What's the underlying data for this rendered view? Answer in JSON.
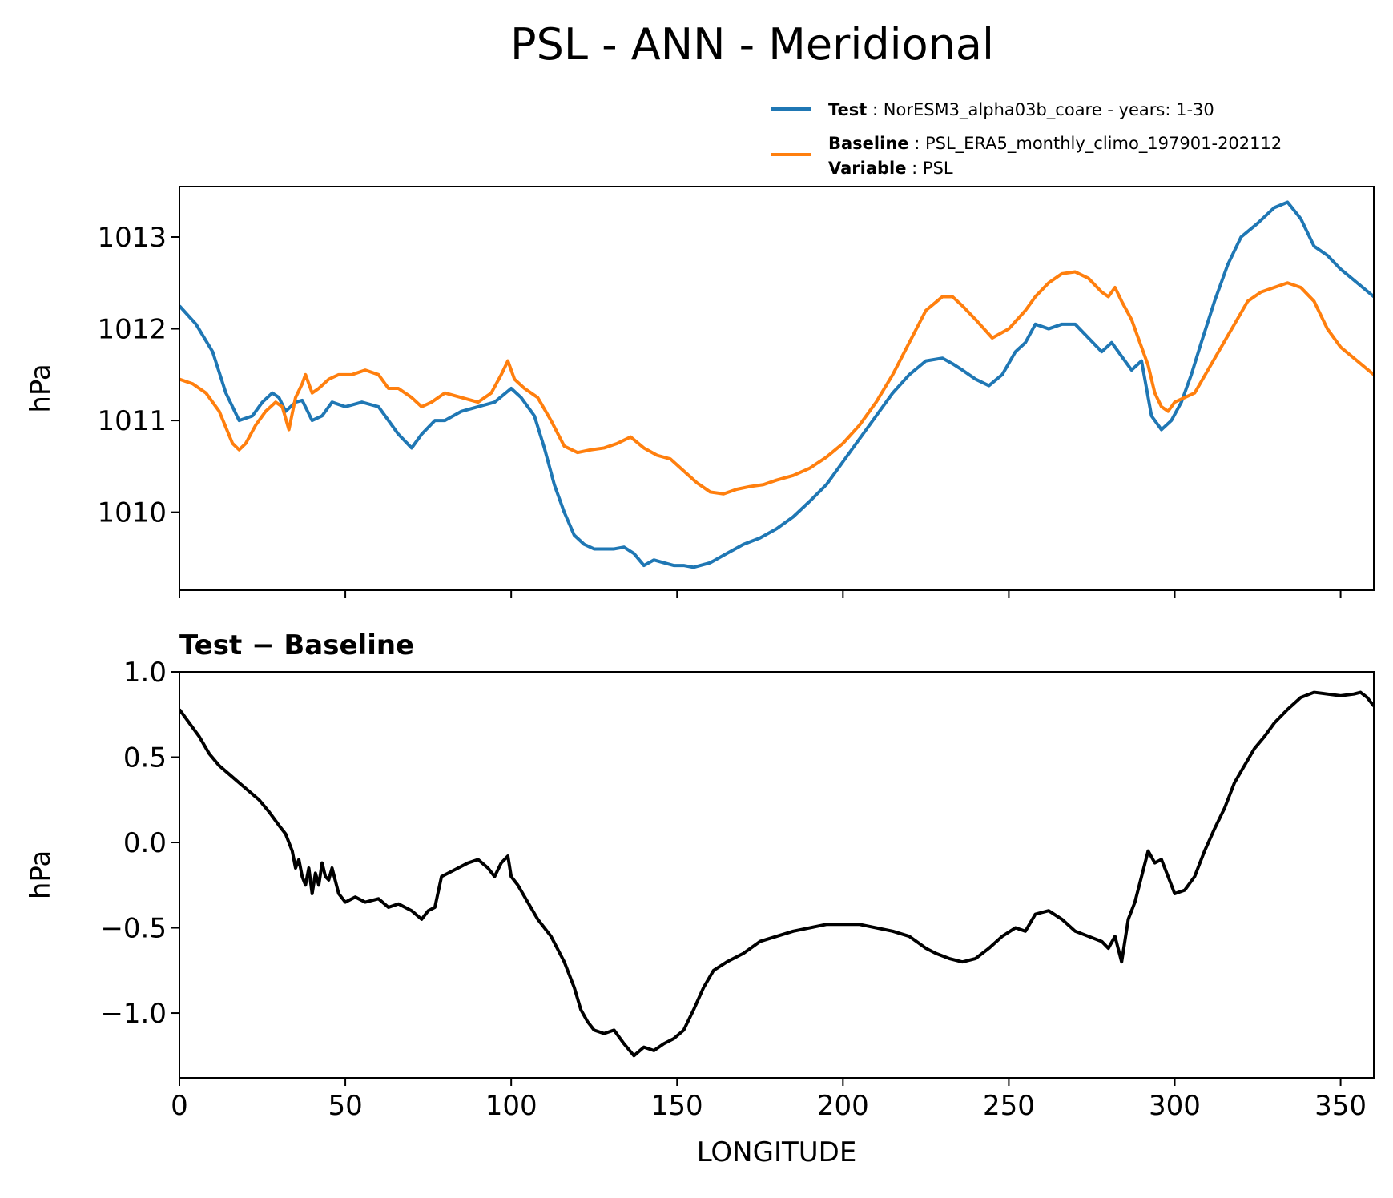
{
  "title": "PSL - ANN - Meridional",
  "legend": {
    "test_key": "Test",
    "test_value": "NorESM3_alpha03b_coare - years: 1-30",
    "baseline_key": "Baseline",
    "baseline_value": "PSL_ERA5_monthly_climo_197901-202112",
    "variable_key": "Variable",
    "variable_value": "PSL"
  },
  "colors": {
    "test": "#1f77b4",
    "baseline": "#ff7f0e",
    "diff": "#000000"
  },
  "chart_data": [
    {
      "type": "line",
      "title": "",
      "xlabel": "",
      "ylabel": "hPa",
      "xlim": [
        0,
        360
      ],
      "ylim": [
        1009.15,
        1013.55
      ],
      "yticks": [
        1010,
        1011,
        1012,
        1013
      ],
      "yticklabels": [
        "1010",
        "1011",
        "1012",
        "1013"
      ],
      "xticks": [
        0,
        50,
        100,
        150,
        200,
        250,
        300,
        350
      ],
      "show_xticklabels": false,
      "series": [
        {
          "name": "Test",
          "x": [
            0,
            5,
            10,
            14,
            18,
            22,
            25,
            28,
            30,
            32,
            35,
            37,
            40,
            43,
            46,
            50,
            55,
            60,
            63,
            66,
            70,
            73,
            77,
            80,
            85,
            90,
            95,
            100,
            103,
            107,
            110,
            113,
            116,
            119,
            122,
            125,
            128,
            131,
            134,
            137,
            140,
            143,
            146,
            149,
            152,
            155,
            160,
            165,
            170,
            175,
            180,
            185,
            190,
            195,
            200,
            205,
            210,
            215,
            220,
            225,
            230,
            233,
            236,
            240,
            244,
            248,
            252,
            255,
            258,
            262,
            266,
            270,
            274,
            278,
            281,
            284,
            287,
            290,
            293,
            296,
            299,
            302,
            305,
            308,
            312,
            316,
            320,
            325,
            330,
            334,
            338,
            342,
            346,
            350,
            355,
            360
          ],
          "values": [
            1012.25,
            1012.05,
            1011.75,
            1011.3,
            1011.0,
            1011.05,
            1011.2,
            1011.3,
            1011.25,
            1011.1,
            1011.2,
            1011.22,
            1011.0,
            1011.05,
            1011.2,
            1011.15,
            1011.2,
            1011.15,
            1011.0,
            1010.85,
            1010.7,
            1010.85,
            1011.0,
            1011.0,
            1011.1,
            1011.15,
            1011.2,
            1011.35,
            1011.25,
            1011.05,
            1010.7,
            1010.3,
            1010.0,
            1009.75,
            1009.65,
            1009.6,
            1009.6,
            1009.6,
            1009.62,
            1009.55,
            1009.42,
            1009.48,
            1009.45,
            1009.42,
            1009.42,
            1009.4,
            1009.45,
            1009.55,
            1009.65,
            1009.72,
            1009.82,
            1009.95,
            1010.12,
            1010.3,
            1010.55,
            1010.8,
            1011.05,
            1011.3,
            1011.5,
            1011.65,
            1011.68,
            1011.62,
            1011.55,
            1011.45,
            1011.38,
            1011.5,
            1011.75,
            1011.85,
            1012.05,
            1012.0,
            1012.05,
            1012.05,
            1011.9,
            1011.75,
            1011.85,
            1011.7,
            1011.55,
            1011.65,
            1011.05,
            1010.9,
            1011.0,
            1011.2,
            1011.5,
            1011.85,
            1012.3,
            1012.7,
            1013.0,
            1013.15,
            1013.32,
            1013.38,
            1013.2,
            1012.9,
            1012.8,
            1012.65,
            1012.5,
            1012.35
          ]
        },
        {
          "name": "Baseline",
          "x": [
            0,
            4,
            8,
            12,
            16,
            18,
            20,
            23,
            26,
            29,
            31,
            33,
            35,
            37,
            38,
            40,
            42,
            45,
            48,
            52,
            56,
            60,
            63,
            66,
            70,
            73,
            76,
            80,
            85,
            90,
            94,
            97,
            99,
            101,
            104,
            108,
            112,
            116,
            120,
            124,
            128,
            132,
            136,
            140,
            144,
            148,
            152,
            156,
            160,
            164,
            168,
            172,
            176,
            180,
            185,
            190,
            195,
            200,
            205,
            210,
            215,
            220,
            225,
            230,
            233,
            236,
            240,
            245,
            250,
            255,
            258,
            262,
            266,
            270,
            274,
            278,
            280,
            282,
            284,
            287,
            290,
            292,
            294,
            296,
            298,
            300,
            303,
            306,
            310,
            314,
            318,
            322,
            326,
            330,
            334,
            338,
            342,
            346,
            350,
            355,
            360
          ],
          "values": [
            1011.45,
            1011.4,
            1011.3,
            1011.1,
            1010.75,
            1010.68,
            1010.75,
            1010.95,
            1011.1,
            1011.2,
            1011.15,
            1010.9,
            1011.25,
            1011.4,
            1011.5,
            1011.3,
            1011.35,
            1011.45,
            1011.5,
            1011.5,
            1011.55,
            1011.5,
            1011.35,
            1011.35,
            1011.25,
            1011.15,
            1011.2,
            1011.3,
            1011.25,
            1011.2,
            1011.3,
            1011.5,
            1011.65,
            1011.45,
            1011.35,
            1011.25,
            1011.0,
            1010.72,
            1010.65,
            1010.68,
            1010.7,
            1010.75,
            1010.82,
            1010.7,
            1010.62,
            1010.58,
            1010.45,
            1010.32,
            1010.22,
            1010.2,
            1010.25,
            1010.28,
            1010.3,
            1010.35,
            1010.4,
            1010.48,
            1010.6,
            1010.75,
            1010.95,
            1011.2,
            1011.5,
            1011.85,
            1012.2,
            1012.35,
            1012.35,
            1012.25,
            1012.1,
            1011.9,
            1012.0,
            1012.2,
            1012.35,
            1012.5,
            1012.6,
            1012.62,
            1012.55,
            1012.4,
            1012.35,
            1012.45,
            1012.3,
            1012.1,
            1011.8,
            1011.6,
            1011.3,
            1011.15,
            1011.1,
            1011.2,
            1011.25,
            1011.3,
            1011.55,
            1011.8,
            1012.05,
            1012.3,
            1012.4,
            1012.45,
            1012.5,
            1012.45,
            1012.3,
            1012.0,
            1011.8,
            1011.65,
            1011.5
          ]
        }
      ]
    },
    {
      "type": "line",
      "title": "Test − Baseline",
      "xlabel": "LONGITUDE",
      "ylabel": "hPa",
      "xlim": [
        0,
        360
      ],
      "ylim": [
        -1.38,
        1.0
      ],
      "yticks": [
        -1.0,
        -0.5,
        0.0,
        0.5,
        1.0
      ],
      "yticklabels": [
        "−1.0",
        "−0.5",
        "0.0",
        "0.5",
        "1.0"
      ],
      "xticks": [
        0,
        50,
        100,
        150,
        200,
        250,
        300,
        350
      ],
      "xticklabels": [
        "0",
        "50",
        "100",
        "150",
        "200",
        "250",
        "300",
        "350"
      ],
      "series": [
        {
          "name": "Test - Baseline",
          "x": [
            0,
            3,
            6,
            9,
            12,
            15,
            18,
            21,
            24,
            27,
            30,
            32,
            34,
            35,
            36,
            37,
            38,
            39,
            40,
            41,
            42,
            43,
            44,
            45,
            46,
            48,
            50,
            53,
            56,
            60,
            63,
            66,
            70,
            73,
            75,
            77,
            79,
            81,
            84,
            87,
            90,
            93,
            95,
            97,
            99,
            100,
            102,
            105,
            108,
            112,
            116,
            119,
            121,
            123,
            125,
            128,
            131,
            134,
            137,
            140,
            143,
            146,
            149,
            152,
            155,
            158,
            161,
            165,
            170,
            175,
            180,
            185,
            190,
            195,
            200,
            205,
            210,
            215,
            220,
            225,
            228,
            232,
            236,
            240,
            244,
            248,
            252,
            255,
            258,
            262,
            266,
            270,
            274,
            278,
            280,
            282,
            284,
            286,
            288,
            290,
            292,
            294,
            296,
            298,
            300,
            303,
            306,
            309,
            312,
            315,
            318,
            321,
            324,
            327,
            330,
            334,
            338,
            342,
            346,
            350,
            354,
            356,
            358,
            360
          ],
          "values": [
            0.78,
            0.7,
            0.62,
            0.52,
            0.45,
            0.4,
            0.35,
            0.3,
            0.25,
            0.18,
            0.1,
            0.05,
            -0.05,
            -0.15,
            -0.1,
            -0.2,
            -0.25,
            -0.15,
            -0.3,
            -0.18,
            -0.25,
            -0.12,
            -0.2,
            -0.22,
            -0.15,
            -0.3,
            -0.35,
            -0.32,
            -0.35,
            -0.33,
            -0.38,
            -0.36,
            -0.4,
            -0.45,
            -0.4,
            -0.38,
            -0.2,
            -0.18,
            -0.15,
            -0.12,
            -0.1,
            -0.15,
            -0.2,
            -0.12,
            -0.08,
            -0.2,
            -0.25,
            -0.35,
            -0.45,
            -0.55,
            -0.7,
            -0.85,
            -0.98,
            -1.05,
            -1.1,
            -1.12,
            -1.1,
            -1.18,
            -1.25,
            -1.2,
            -1.22,
            -1.18,
            -1.15,
            -1.1,
            -0.98,
            -0.85,
            -0.75,
            -0.7,
            -0.65,
            -0.58,
            -0.55,
            -0.52,
            -0.5,
            -0.48,
            -0.48,
            -0.48,
            -0.5,
            -0.52,
            -0.55,
            -0.62,
            -0.65,
            -0.68,
            -0.7,
            -0.68,
            -0.62,
            -0.55,
            -0.5,
            -0.52,
            -0.42,
            -0.4,
            -0.45,
            -0.52,
            -0.55,
            -0.58,
            -0.62,
            -0.55,
            -0.7,
            -0.45,
            -0.35,
            -0.2,
            -0.05,
            -0.12,
            -0.1,
            -0.2,
            -0.3,
            -0.28,
            -0.2,
            -0.05,
            0.08,
            0.2,
            0.35,
            0.45,
            0.55,
            0.62,
            0.7,
            0.78,
            0.85,
            0.88,
            0.87,
            0.86,
            0.87,
            0.88,
            0.85,
            0.8
          ]
        }
      ]
    }
  ]
}
